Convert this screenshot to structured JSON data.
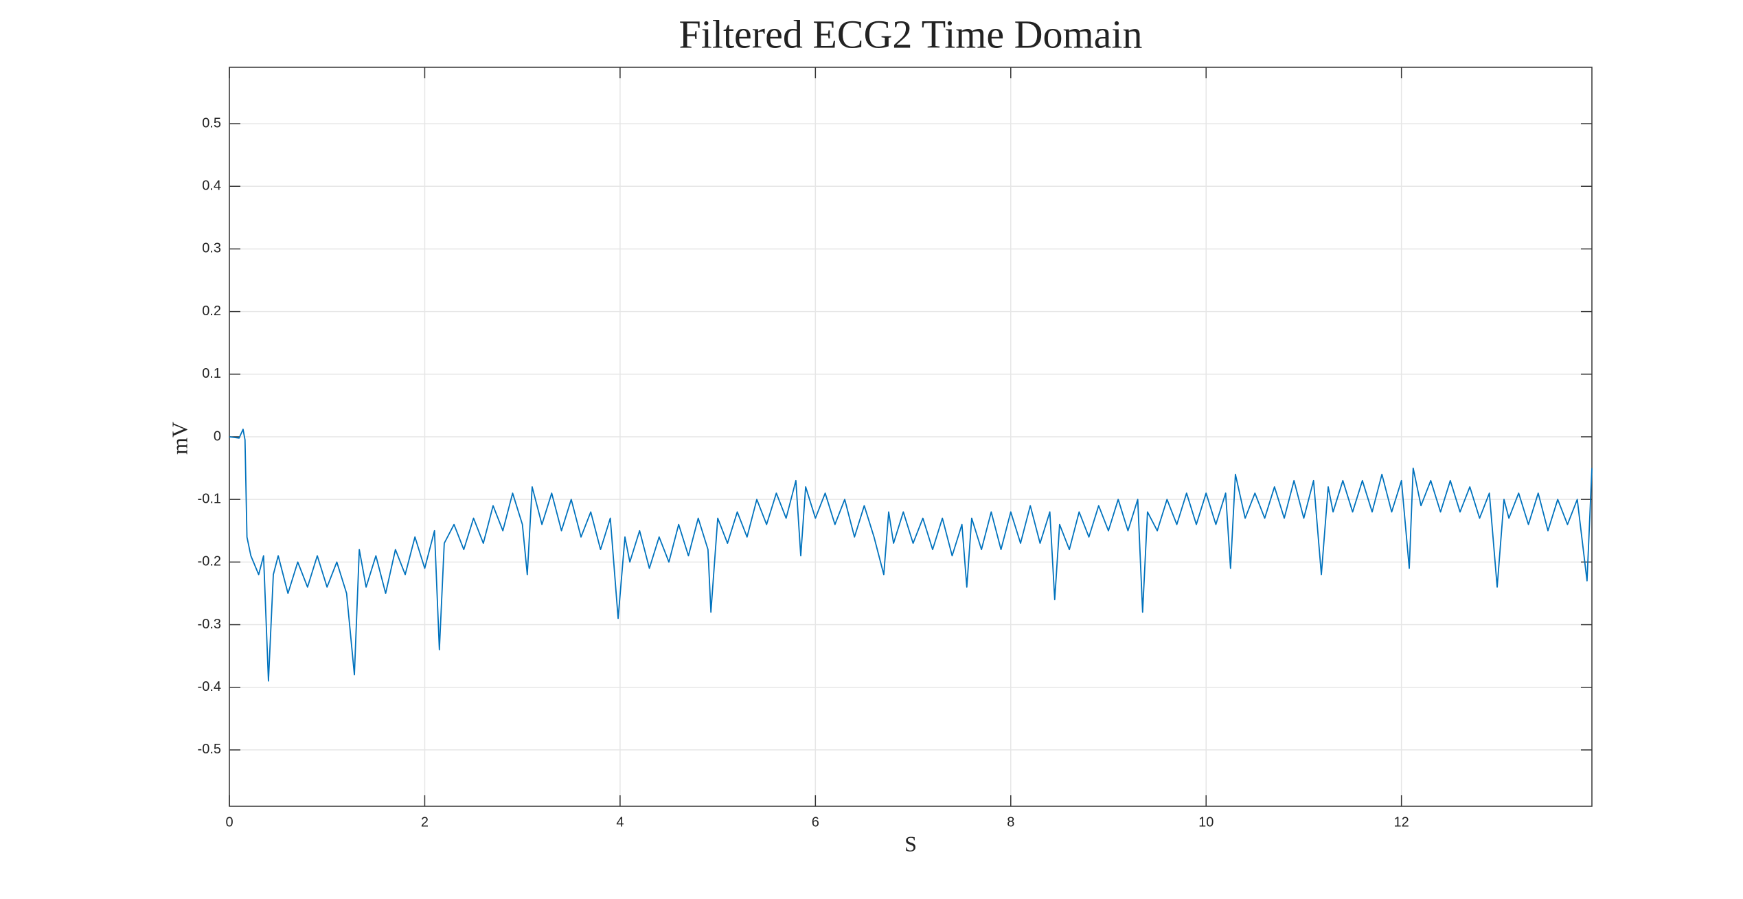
{
  "chart_data": {
    "type": "line",
    "title": "Filtered ECG2 Time Domain",
    "xlabel": "S",
    "ylabel": "mV",
    "color": "#0072bd",
    "grid": true,
    "xlim": [
      0,
      13.95
    ],
    "ylim": [
      -0.59,
      0.59
    ],
    "xticks": [
      0,
      2,
      4,
      6,
      8,
      10,
      12
    ],
    "yticks": [
      -0.5,
      -0.4,
      -0.3,
      -0.2,
      -0.1,
      0,
      0.1,
      0.2,
      0.3,
      0.4,
      0.5
    ],
    "x": [
      0,
      0.1,
      0.14,
      0.16,
      0.18,
      0.22,
      0.3,
      0.35,
      0.4,
      0.45,
      0.5,
      0.6,
      0.7,
      0.8,
      0.9,
      1.0,
      1.1,
      1.2,
      1.28,
      1.33,
      1.4,
      1.5,
      1.6,
      1.7,
      1.8,
      1.9,
      2.0,
      2.1,
      2.15,
      2.2,
      2.3,
      2.4,
      2.5,
      2.6,
      2.7,
      2.8,
      2.9,
      3.0,
      3.05,
      3.1,
      3.2,
      3.3,
      3.4,
      3.5,
      3.6,
      3.7,
      3.8,
      3.9,
      3.98,
      4.05,
      4.1,
      4.2,
      4.3,
      4.4,
      4.5,
      4.6,
      4.7,
      4.8,
      4.9,
      4.93,
      5.0,
      5.1,
      5.2,
      5.3,
      5.4,
      5.5,
      5.6,
      5.7,
      5.8,
      5.85,
      5.9,
      6.0,
      6.1,
      6.2,
      6.3,
      6.4,
      6.5,
      6.6,
      6.7,
      6.75,
      6.8,
      6.9,
      7.0,
      7.1,
      7.2,
      7.3,
      7.4,
      7.5,
      7.55,
      7.6,
      7.7,
      7.8,
      7.9,
      8.0,
      8.1,
      8.2,
      8.3,
      8.4,
      8.45,
      8.5,
      8.6,
      8.7,
      8.8,
      8.9,
      9.0,
      9.1,
      9.2,
      9.3,
      9.35,
      9.4,
      9.5,
      9.6,
      9.7,
      9.8,
      9.9,
      10.0,
      10.1,
      10.2,
      10.25,
      10.3,
      10.4,
      10.5,
      10.6,
      10.7,
      10.8,
      10.9,
      11.0,
      11.1,
      11.18,
      11.25,
      11.3,
      11.4,
      11.5,
      11.6,
      11.7,
      11.8,
      11.9,
      12.0,
      12.08,
      12.12,
      12.2,
      12.3,
      12.4,
      12.5,
      12.6,
      12.7,
      12.8,
      12.9,
      12.98,
      13.05,
      13.1,
      13.2,
      13.3,
      13.4,
      13.5,
      13.6,
      13.7,
      13.8,
      13.9,
      13.95
    ],
    "values": [
      0,
      -0.002,
      0.012,
      -0.005,
      -0.16,
      -0.19,
      -0.22,
      -0.19,
      -0.39,
      -0.22,
      -0.19,
      -0.25,
      -0.2,
      -0.24,
      -0.19,
      -0.24,
      -0.2,
      -0.25,
      -0.38,
      -0.18,
      -0.24,
      -0.19,
      -0.25,
      -0.18,
      -0.22,
      -0.16,
      -0.21,
      -0.15,
      -0.34,
      -0.17,
      -0.14,
      -0.18,
      -0.13,
      -0.17,
      -0.11,
      -0.15,
      -0.09,
      -0.14,
      -0.22,
      -0.08,
      -0.14,
      -0.09,
      -0.15,
      -0.1,
      -0.16,
      -0.12,
      -0.18,
      -0.13,
      -0.29,
      -0.16,
      -0.2,
      -0.15,
      -0.21,
      -0.16,
      -0.2,
      -0.14,
      -0.19,
      -0.13,
      -0.18,
      -0.28,
      -0.13,
      -0.17,
      -0.12,
      -0.16,
      -0.1,
      -0.14,
      -0.09,
      -0.13,
      -0.07,
      -0.19,
      -0.08,
      -0.13,
      -0.09,
      -0.14,
      -0.1,
      -0.16,
      -0.11,
      -0.16,
      -0.22,
      -0.12,
      -0.17,
      -0.12,
      -0.17,
      -0.13,
      -0.18,
      -0.13,
      -0.19,
      -0.14,
      -0.24,
      -0.13,
      -0.18,
      -0.12,
      -0.18,
      -0.12,
      -0.17,
      -0.11,
      -0.17,
      -0.12,
      -0.26,
      -0.14,
      -0.18,
      -0.12,
      -0.16,
      -0.11,
      -0.15,
      -0.1,
      -0.15,
      -0.1,
      -0.28,
      -0.12,
      -0.15,
      -0.1,
      -0.14,
      -0.09,
      -0.14,
      -0.09,
      -0.14,
      -0.09,
      -0.21,
      -0.06,
      -0.13,
      -0.09,
      -0.13,
      -0.08,
      -0.13,
      -0.07,
      -0.13,
      -0.07,
      -0.22,
      -0.08,
      -0.12,
      -0.07,
      -0.12,
      -0.07,
      -0.12,
      -0.06,
      -0.12,
      -0.07,
      -0.21,
      -0.05,
      -0.11,
      -0.07,
      -0.12,
      -0.07,
      -0.12,
      -0.08,
      -0.13,
      -0.09,
      -0.24,
      -0.1,
      -0.13,
      -0.09,
      -0.14,
      -0.09,
      -0.15,
      -0.1,
      -0.14,
      -0.1,
      -0.23,
      -0.05
    ]
  }
}
